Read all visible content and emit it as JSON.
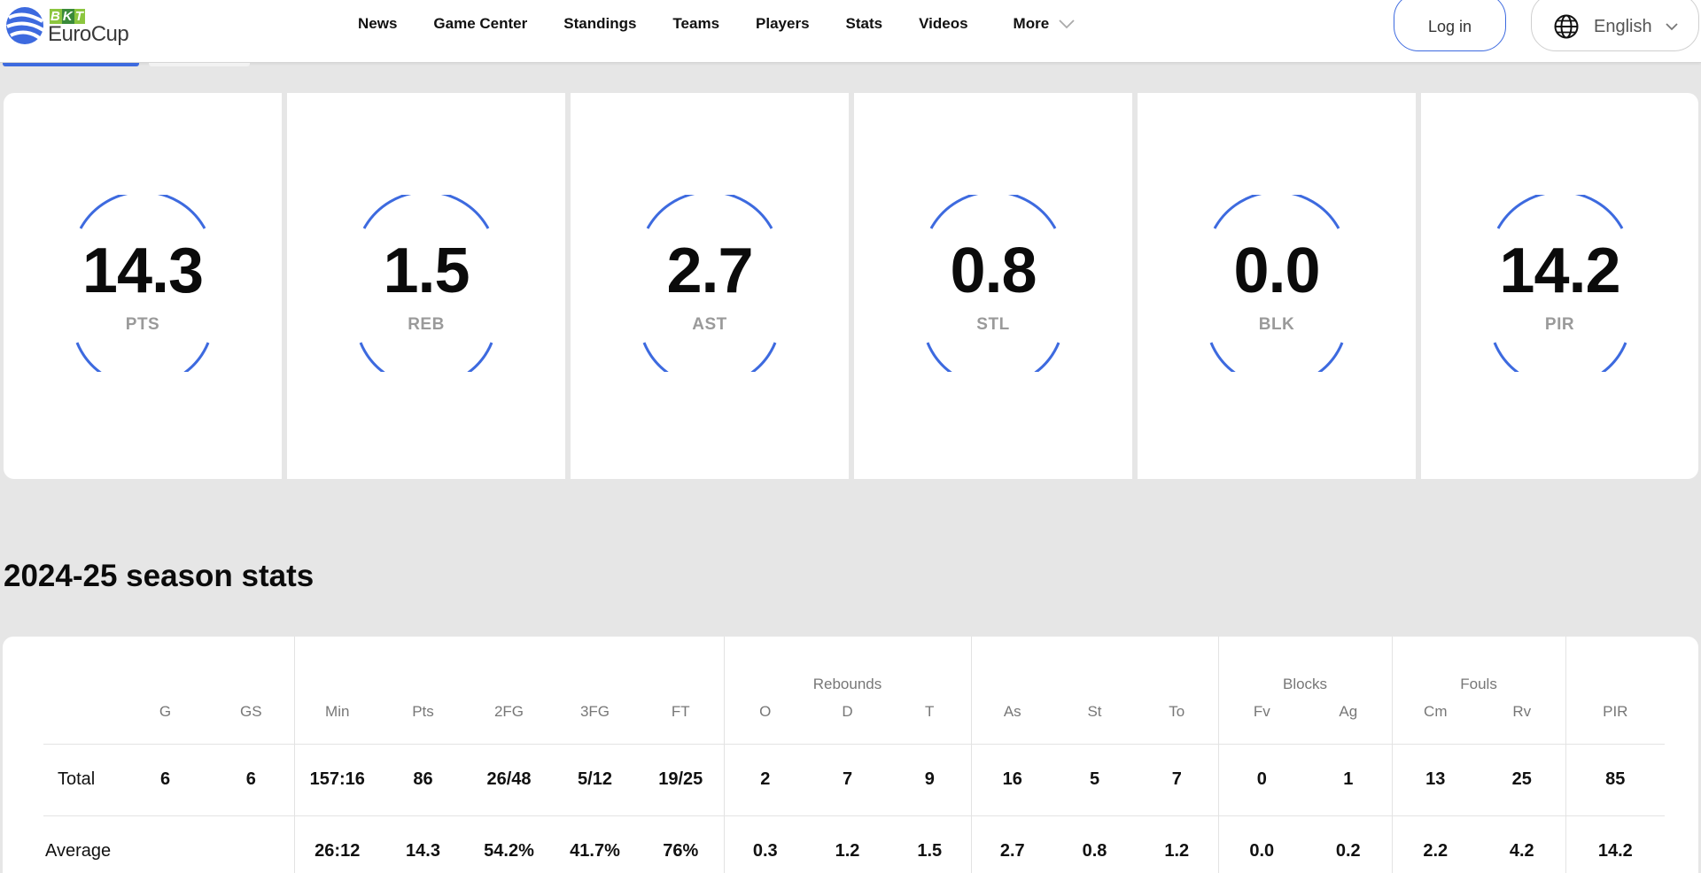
{
  "header": {
    "logo": {
      "badge_letters": [
        "B",
        "K",
        "T"
      ],
      "name": "EuroCup"
    },
    "nav": [
      {
        "label": "News"
      },
      {
        "label": "Game Center"
      },
      {
        "label": "Standings"
      },
      {
        "label": "Teams"
      },
      {
        "label": "Players"
      },
      {
        "label": "Stats"
      },
      {
        "label": "Videos"
      }
    ],
    "more_label": "More",
    "login_label": "Log in",
    "language_label": "English"
  },
  "colors": {
    "accent": "#3d6adf",
    "logo_green": "#8cc63f",
    "logo_dark_green": "#3a8a3a"
  },
  "cards": [
    {
      "value": "14.3",
      "label": "PTS"
    },
    {
      "value": "1.5",
      "label": "REB"
    },
    {
      "value": "2.7",
      "label": "AST"
    },
    {
      "value": "0.8",
      "label": "STL"
    },
    {
      "value": "0.0",
      "label": "BLK"
    },
    {
      "value": "14.2",
      "label": "PIR"
    }
  ],
  "season": {
    "title": "2024-25 season stats",
    "groups": {
      "rebounds": "Rebounds",
      "blocks": "Blocks",
      "fouls": "Fouls"
    },
    "columns": [
      "G",
      "GS",
      "Min",
      "Pts",
      "2FG",
      "3FG",
      "FT",
      "O",
      "D",
      "T",
      "As",
      "St",
      "To",
      "Fv",
      "Ag",
      "Cm",
      "Rv",
      "PIR"
    ],
    "rows": [
      {
        "label": "Total",
        "cells": [
          "6",
          "6",
          "157:16",
          "86",
          "26/48",
          "5/12",
          "19/25",
          "2",
          "7",
          "9",
          "16",
          "5",
          "7",
          "0",
          "1",
          "13",
          "25",
          "85"
        ]
      },
      {
        "label": "Average",
        "cells": [
          "",
          "",
          "26:12",
          "14.3",
          "54.2%",
          "41.7%",
          "76%",
          "0.3",
          "1.2",
          "1.5",
          "2.7",
          "0.8",
          "1.2",
          "0.0",
          "0.2",
          "2.2",
          "4.2",
          "14.2"
        ]
      }
    ]
  }
}
